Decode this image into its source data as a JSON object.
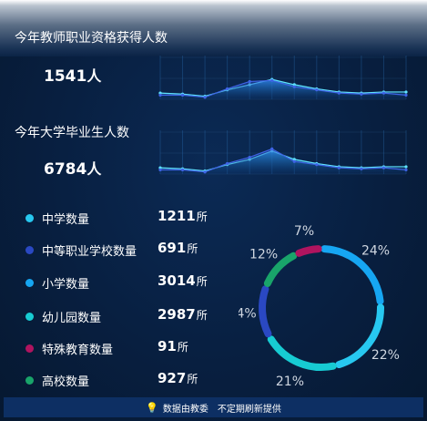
{
  "section1": {
    "title": "今年教师职业资格获得人数",
    "count": "1541",
    "unit": "人"
  },
  "section2": {
    "title": "今年大学毕业生人数",
    "count": "6784",
    "unit": "人"
  },
  "stats": [
    {
      "label": "中学数量",
      "value": "1211",
      "unit": "所",
      "color": "#27c8f0"
    },
    {
      "label": "中等职业学校数量",
      "value": "691",
      "unit": "所",
      "color": "#2a48c2"
    },
    {
      "label": "小学数量",
      "value": "3014",
      "unit": "所",
      "color": "#16a6f2"
    },
    {
      "label": "幼儿园数量",
      "value": "2987",
      "unit": "所",
      "color": "#17cbd2"
    },
    {
      "label": "特殊教育数量",
      "value": "91",
      "unit": "所",
      "color": "#b0145f"
    },
    {
      "label": "高校数量",
      "value": "927",
      "unit": "所",
      "color": "#19a46a"
    }
  ],
  "footer": {
    "source": "数据由教委",
    "note": "不定期刷新提供"
  },
  "chart_data": [
    {
      "type": "area",
      "ylim": [
        0,
        20
      ],
      "series": [
        {
          "values": [
            3,
            2.5,
            1.5,
            4.5,
            7,
            9.5,
            7,
            5,
            3.5,
            3,
            3.5,
            3.5
          ]
        },
        {
          "values": [
            2,
            2,
            1,
            5,
            8.5,
            9,
            6,
            4.5,
            3,
            2.5,
            3,
            2
          ]
        }
      ]
    },
    {
      "type": "area",
      "ylim": [
        0,
        20
      ],
      "series": [
        {
          "values": [
            3,
            2.5,
            1.5,
            4.5,
            7,
            11,
            7,
            5,
            3.5,
            3,
            3.5,
            3.5
          ]
        },
        {
          "values": [
            2,
            2,
            1,
            5,
            8,
            12,
            6,
            4.5,
            3,
            2.5,
            3,
            2
          ]
        }
      ]
    },
    {
      "type": "pie",
      "labels": [
        "24%",
        "22%",
        "21%",
        "14%",
        "12%",
        "7%"
      ],
      "values": [
        24,
        22,
        21,
        14,
        12,
        7
      ],
      "colors": [
        "#16a6f2",
        "#27c8f0",
        "#17cbd2",
        "#2a48c2",
        "#19a46a",
        "#b0145f"
      ]
    }
  ]
}
